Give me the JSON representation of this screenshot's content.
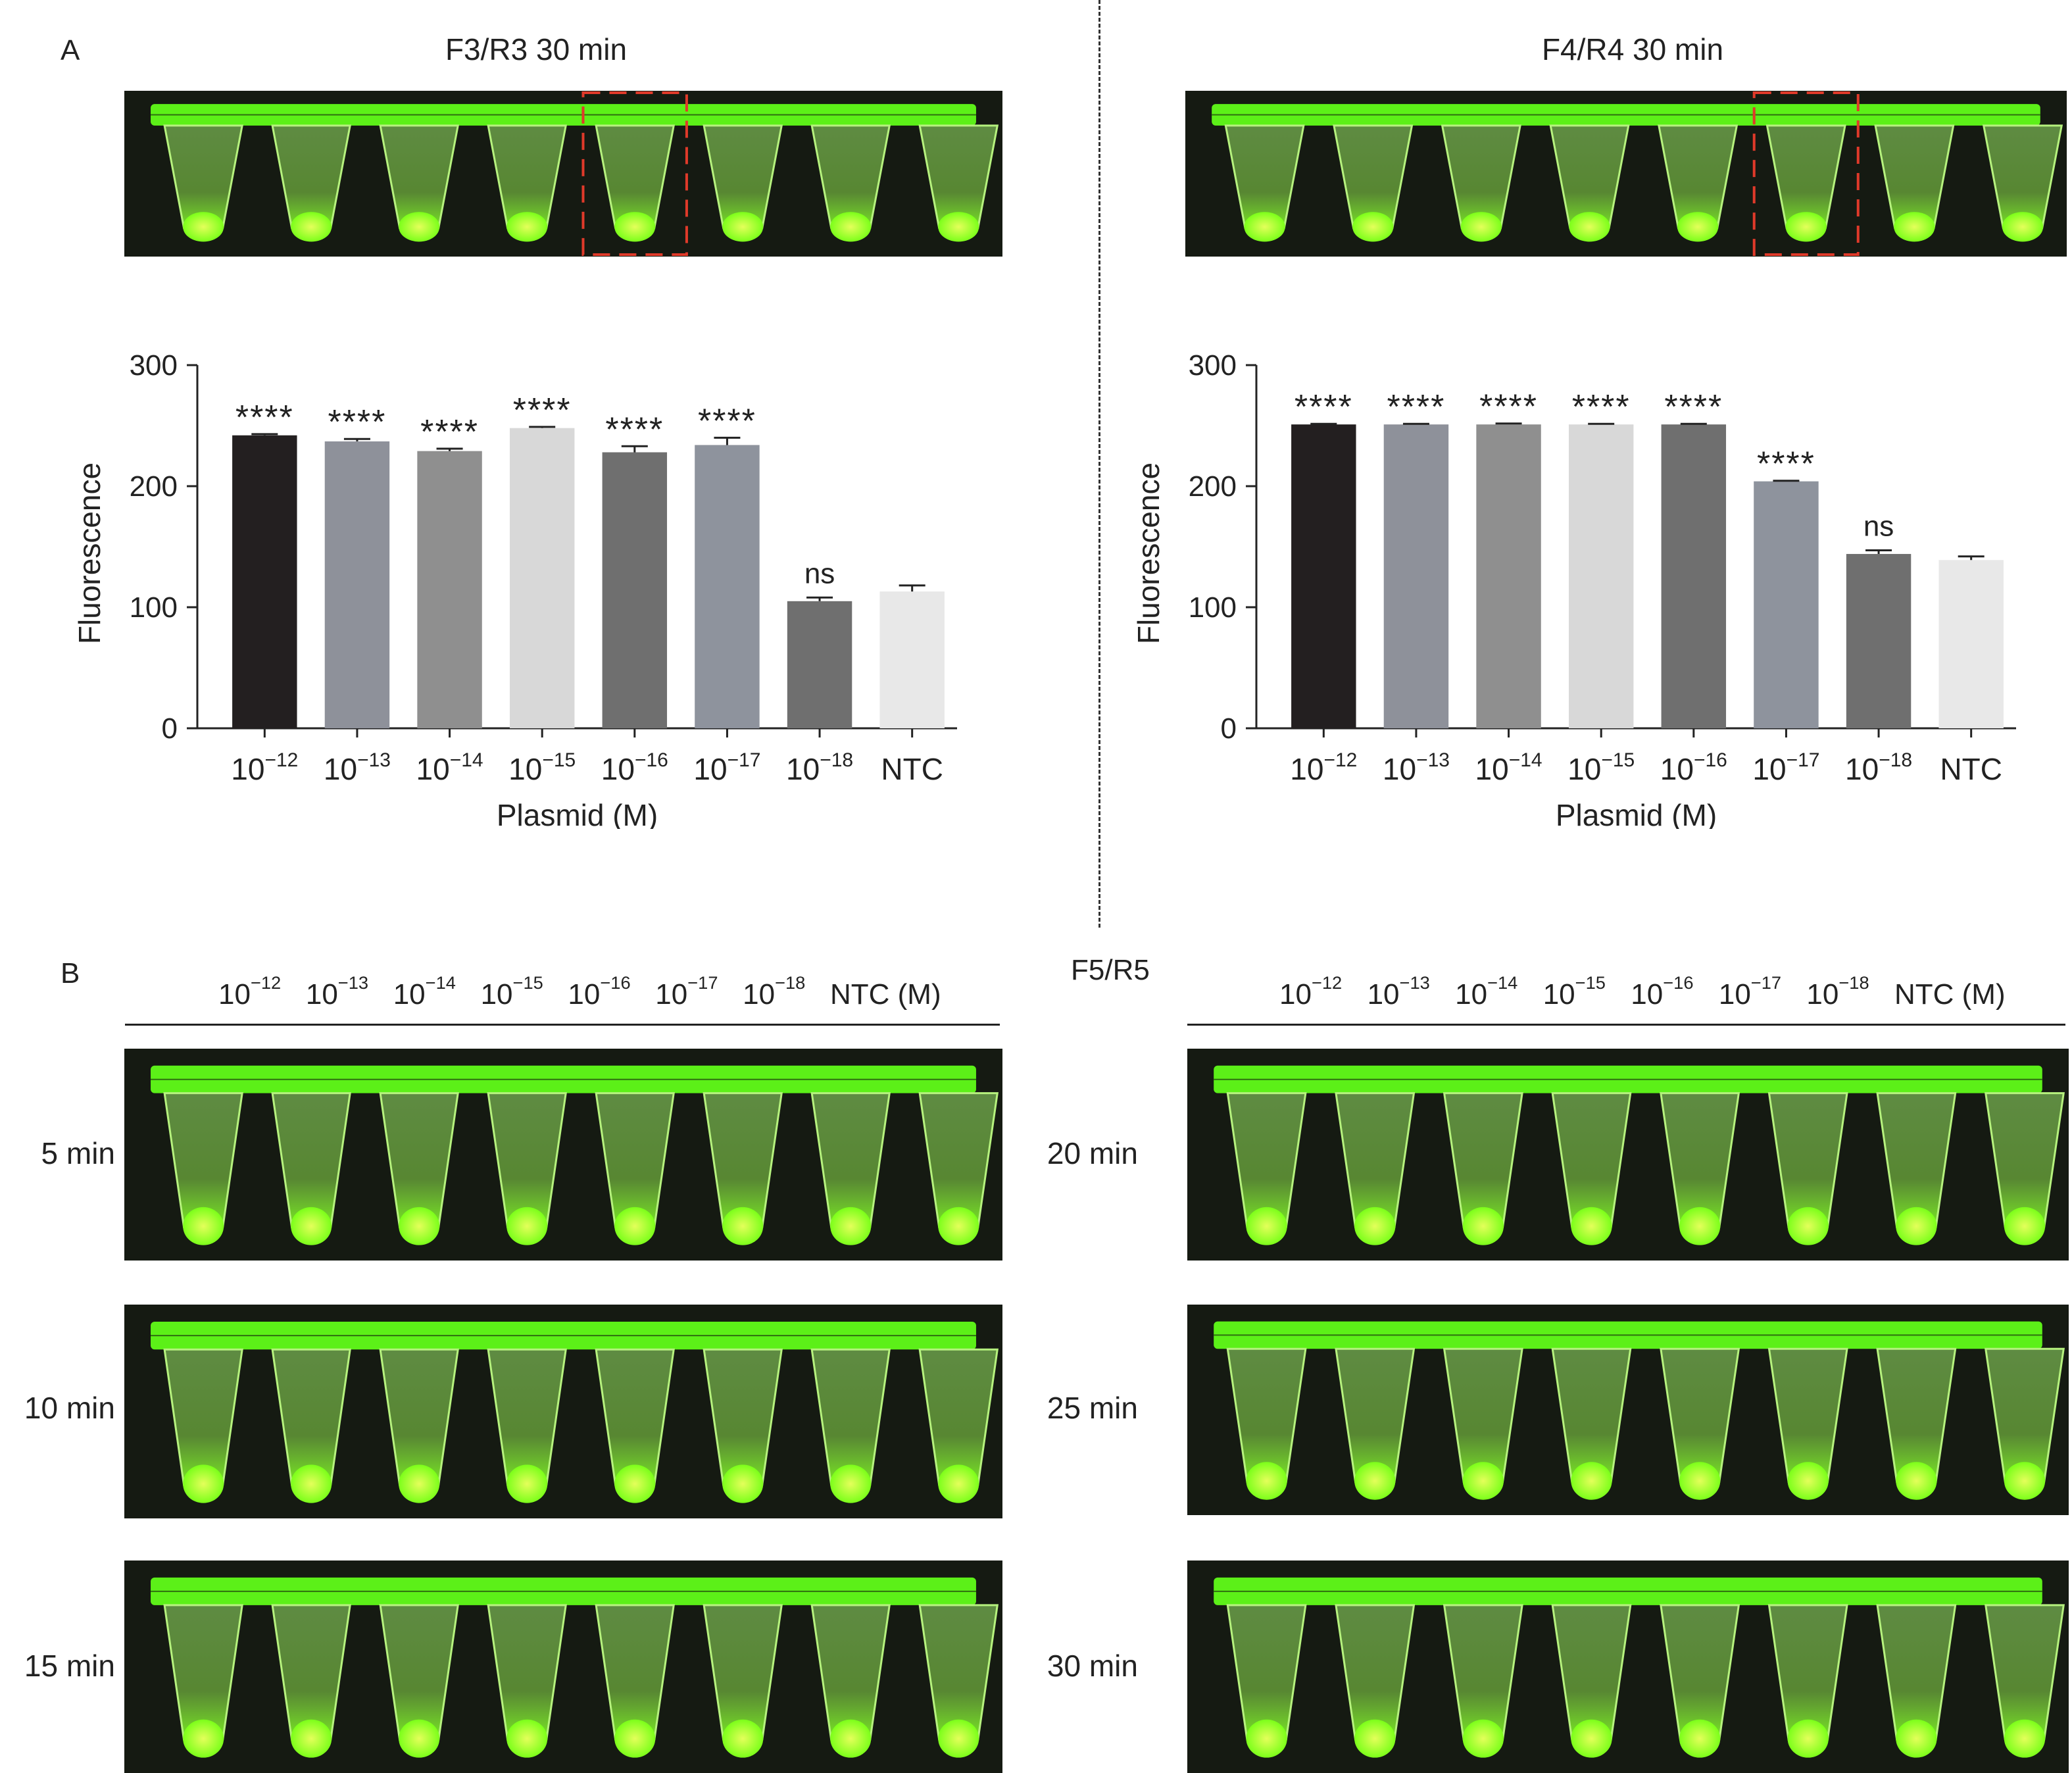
{
  "panel_a": {
    "letter": "A",
    "left_title": "F3/R3 30 min",
    "right_title": "F4/R4 30 min"
  },
  "panel_b": {
    "letter": "B",
    "primer_label": "F5/R5",
    "header_labels": [
      "10⁻¹²",
      "10⁻¹³",
      "10⁻¹⁴",
      "10⁻¹⁵",
      "10⁻¹⁶",
      "10⁻¹⁷",
      "10⁻¹⁸",
      "NTC (M)"
    ],
    "left_times": [
      "5 min",
      "10 min",
      "15 min"
    ],
    "right_times": [
      "20 min",
      "25 min",
      "30 min"
    ]
  },
  "colors": {
    "tube_glow": "#7cff1a",
    "strip": "#5cf018",
    "highlight_box": "#e03a2a",
    "photo_bg": "#151a12"
  },
  "chart_data": [
    {
      "type": "bar",
      "categories": [
        "10⁻¹²",
        "10⁻¹³",
        "10⁻¹⁴",
        "10⁻¹⁵",
        "10⁻¹⁶",
        "10⁻¹⁷",
        "10⁻¹⁸",
        "NTC"
      ],
      "values": [
        242,
        237,
        229,
        248,
        228,
        234,
        105,
        113
      ],
      "errors": [
        1,
        2,
        2,
        1,
        5,
        6,
        3,
        5
      ],
      "significance": [
        "****",
        "****",
        "****",
        "****",
        "****",
        "****",
        "ns",
        ""
      ],
      "bar_colors": [
        "#231f20",
        "#8e919a",
        "#8f8f8f",
        "#d8d8d8",
        "#6f6f6f",
        "#8e939d",
        "#6f6f6f",
        "#e8e8e8"
      ],
      "xlabel": "Plasmid (M)",
      "ylabel": "Fluorescence",
      "ylim": [
        0,
        300
      ],
      "yticks": [
        0,
        100,
        200,
        300
      ]
    },
    {
      "type": "bar",
      "categories": [
        "10⁻¹²",
        "10⁻¹³",
        "10⁻¹⁴",
        "10⁻¹⁵",
        "10⁻¹⁶",
        "10⁻¹⁷",
        "10⁻¹⁸",
        "NTC"
      ],
      "values": [
        251,
        251,
        251,
        251,
        251,
        204,
        144,
        139
      ],
      "errors": [
        0.5,
        0.5,
        0.8,
        0.5,
        0.5,
        0.5,
        3,
        3
      ],
      "significance": [
        "****",
        "****",
        "****",
        "****",
        "****",
        "****",
        "ns",
        ""
      ],
      "bar_colors": [
        "#231f20",
        "#8e919a",
        "#8f8f8f",
        "#d8d8d8",
        "#6f6f6f",
        "#8e939d",
        "#6f6f6f",
        "#e8e8e8"
      ],
      "xlabel": "Plasmid (M)",
      "ylabel": "Fluorescence",
      "ylim": [
        0,
        300
      ],
      "yticks": [
        0,
        100,
        200,
        300
      ]
    }
  ]
}
